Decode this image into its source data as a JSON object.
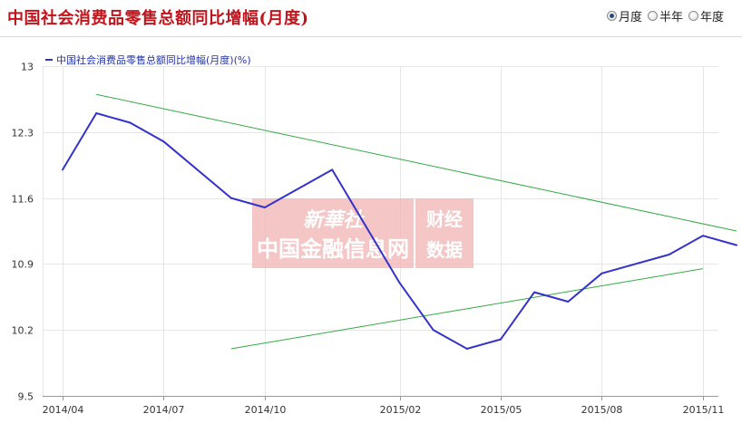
{
  "header": {
    "title": "中国社会消费品零售总额同比增幅(月度)",
    "period_options": [
      {
        "label": "月度",
        "checked": true
      },
      {
        "label": "半年",
        "checked": false
      },
      {
        "label": "年度",
        "checked": false
      }
    ]
  },
  "watermark": {
    "logo_text": "新華社",
    "line1": "中国金融信息网",
    "side_line1": "财经",
    "side_line2": "数据"
  },
  "chart_data": {
    "type": "line",
    "title": "",
    "xlabel": "",
    "ylabel": "",
    "ylim": [
      9.5,
      13
    ],
    "yticks": [
      9.5,
      10.2,
      10.9,
      11.6,
      12.3,
      13
    ],
    "x": [
      "2014/03",
      "2014/04",
      "2014/05",
      "2014/06",
      "2014/07",
      "2014/08",
      "2014/09",
      "2014/10",
      "2014/11",
      "2014/12",
      "2015/01",
      "2015/02",
      "2015/03",
      "2015/04",
      "2015/05",
      "2015/06",
      "2015/07",
      "2015/08",
      "2015/09",
      "2015/10",
      "2015/11",
      "2015/12"
    ],
    "xticks": [
      "2014/04",
      "2014/07",
      "2014/10",
      "2015/02",
      "2015/05",
      "2015/08",
      "2015/11"
    ],
    "legend_position": "top-left",
    "grid": true,
    "series": [
      {
        "name": "中国社会消费品零售总额同比增幅(月度)(%)",
        "color": "#3333cc",
        "points": [
          {
            "x": "2014/04",
            "y": 11.9
          },
          {
            "x": "2014/05",
            "y": 12.5
          },
          {
            "x": "2014/06",
            "y": 12.4
          },
          {
            "x": "2014/07",
            "y": 12.2
          },
          {
            "x": "2014/09",
            "y": 11.6
          },
          {
            "x": "2014/10",
            "y": 11.5
          },
          {
            "x": "2014/12",
            "y": 11.9
          },
          {
            "x": "2015/02",
            "y": 10.7
          },
          {
            "x": "2015/03",
            "y": 10.2
          },
          {
            "x": "2015/04",
            "y": 10.0
          },
          {
            "x": "2015/05",
            "y": 10.1
          },
          {
            "x": "2015/06",
            "y": 10.6
          },
          {
            "x": "2015/07",
            "y": 10.5
          },
          {
            "x": "2015/08",
            "y": 10.8
          },
          {
            "x": "2015/10",
            "y": 11.0
          },
          {
            "x": "2015/11",
            "y": 11.2
          },
          {
            "x": "2015/12",
            "y": 11.1
          }
        ]
      }
    ],
    "trendlines": [
      {
        "color": "#33aa44",
        "from": {
          "x": "2014/05",
          "y": 12.7
        },
        "to": {
          "x": "2015/12",
          "y": 11.25
        }
      },
      {
        "color": "#33aa44",
        "from": {
          "x": "2014/09",
          "y": 10.0
        },
        "to": {
          "x": "2015/11",
          "y": 10.85
        }
      }
    ]
  }
}
